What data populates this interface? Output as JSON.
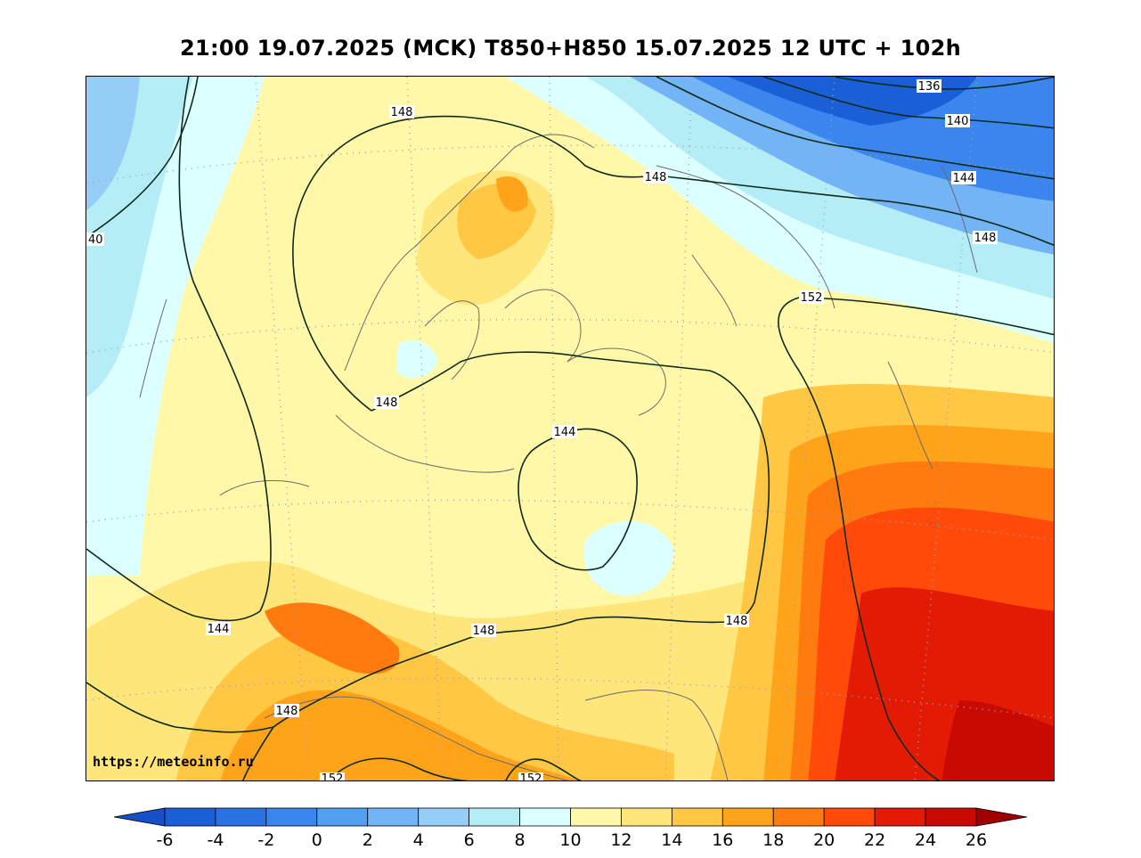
{
  "title": "21:00 19.07.2025 (MCK) T850+H850 15.07.2025 12 UTC + 102h",
  "source_url": "https://meteoinfo.ru",
  "isoline_labels": [
    "136",
    "140",
    "144",
    "148",
    "148",
    "152",
    "148",
    "148",
    "144",
    "148",
    "144",
    "148",
    "152",
    "152",
    "40"
  ],
  "colorbar": {
    "ticks": [
      "-6",
      "-4",
      "-2",
      "0",
      "2",
      "4",
      "6",
      "8",
      "10",
      "12",
      "14",
      "16",
      "18",
      "20",
      "22",
      "24",
      "26"
    ],
    "colors": [
      "#1a5fd6",
      "#2a72e4",
      "#3a86ee",
      "#53a0f3",
      "#72b4f5",
      "#96cdf7",
      "#b5edf7",
      "#dcffff",
      "#fff8a8",
      "#ffe67a",
      "#ffc744",
      "#ffa31a",
      "#ff7a0f",
      "#ff4a0a",
      "#e31b05",
      "#c80a02"
    ],
    "under_color": "#1550c8",
    "over_color": "#a00000"
  }
}
